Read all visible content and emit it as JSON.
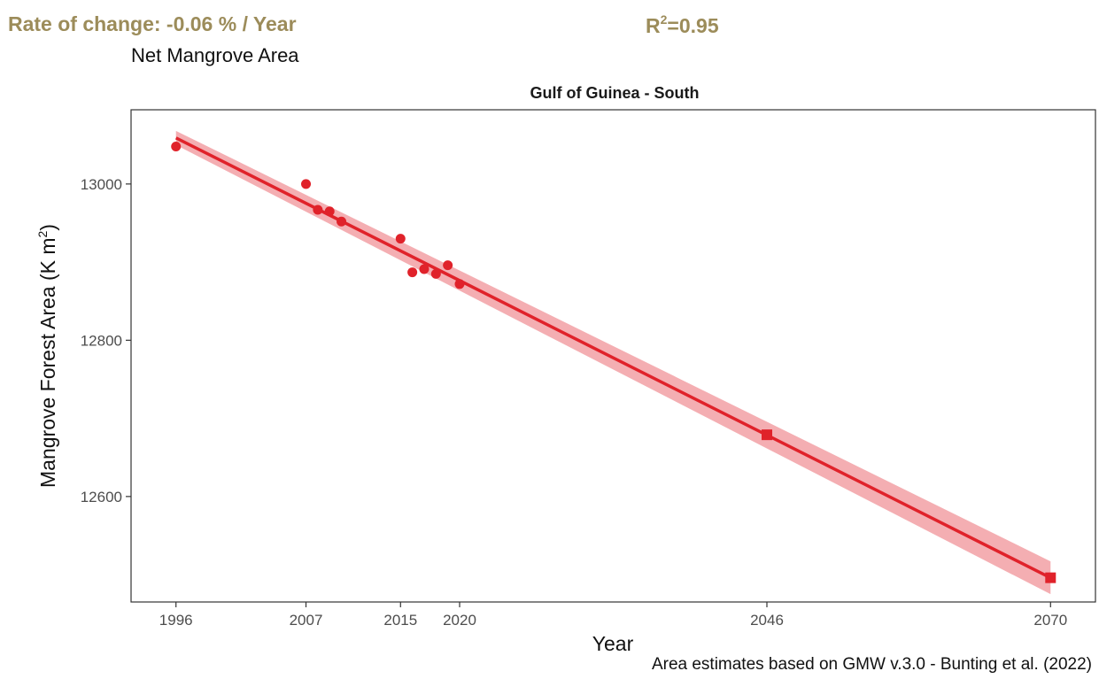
{
  "header": {
    "rate_label": "Rate of change: -0.06 % / Year",
    "r2_prefix": "R",
    "r2_sup": "2",
    "r2_value": "=0.95",
    "subtitle": "Net Mangrove Area",
    "caption": "Area estimates based on GMW v.3.0 - Bunting et al. (2022)"
  },
  "colors": {
    "accent_text": "#9c8c5a",
    "series": "#e0222a",
    "ribbon": "#f2a0a4"
  },
  "chart_data": {
    "type": "scatter",
    "title": "Gulf of Guinea - South",
    "xlabel": "Year",
    "ylabel_main": "Mangrove Forest Area (K m",
    "ylabel_sup": "2",
    "ylabel_end": ")",
    "x_ticks": [
      1996,
      2007,
      2015,
      2020,
      2046,
      2070
    ],
    "y_ticks": [
      12600,
      12800,
      13000
    ],
    "xlim": [
      1992.2,
      2073.8
    ],
    "ylim": [
      12465,
      13095
    ],
    "grid": false,
    "series": [
      {
        "marker": "circle",
        "points": [
          {
            "x": 1996,
            "y": 13048
          },
          {
            "x": 2007,
            "y": 13000
          },
          {
            "x": 2008,
            "y": 12967
          },
          {
            "x": 2009,
            "y": 12965
          },
          {
            "x": 2010,
            "y": 12952
          },
          {
            "x": 2015,
            "y": 12930
          },
          {
            "x": 2016,
            "y": 12887
          },
          {
            "x": 2017,
            "y": 12891
          },
          {
            "x": 2018,
            "y": 12885
          },
          {
            "x": 2019,
            "y": 12896
          },
          {
            "x": 2020,
            "y": 12872
          }
        ]
      },
      {
        "marker": "square",
        "points": [
          {
            "x": 2046,
            "y": 12679
          },
          {
            "x": 2070,
            "y": 12496
          }
        ]
      }
    ],
    "trend": {
      "x": [
        1996,
        2070
      ],
      "y": [
        13059,
        12496
      ],
      "ci_upper": [
        13068,
        12517
      ],
      "ci_lower": [
        13050,
        12475
      ]
    }
  }
}
